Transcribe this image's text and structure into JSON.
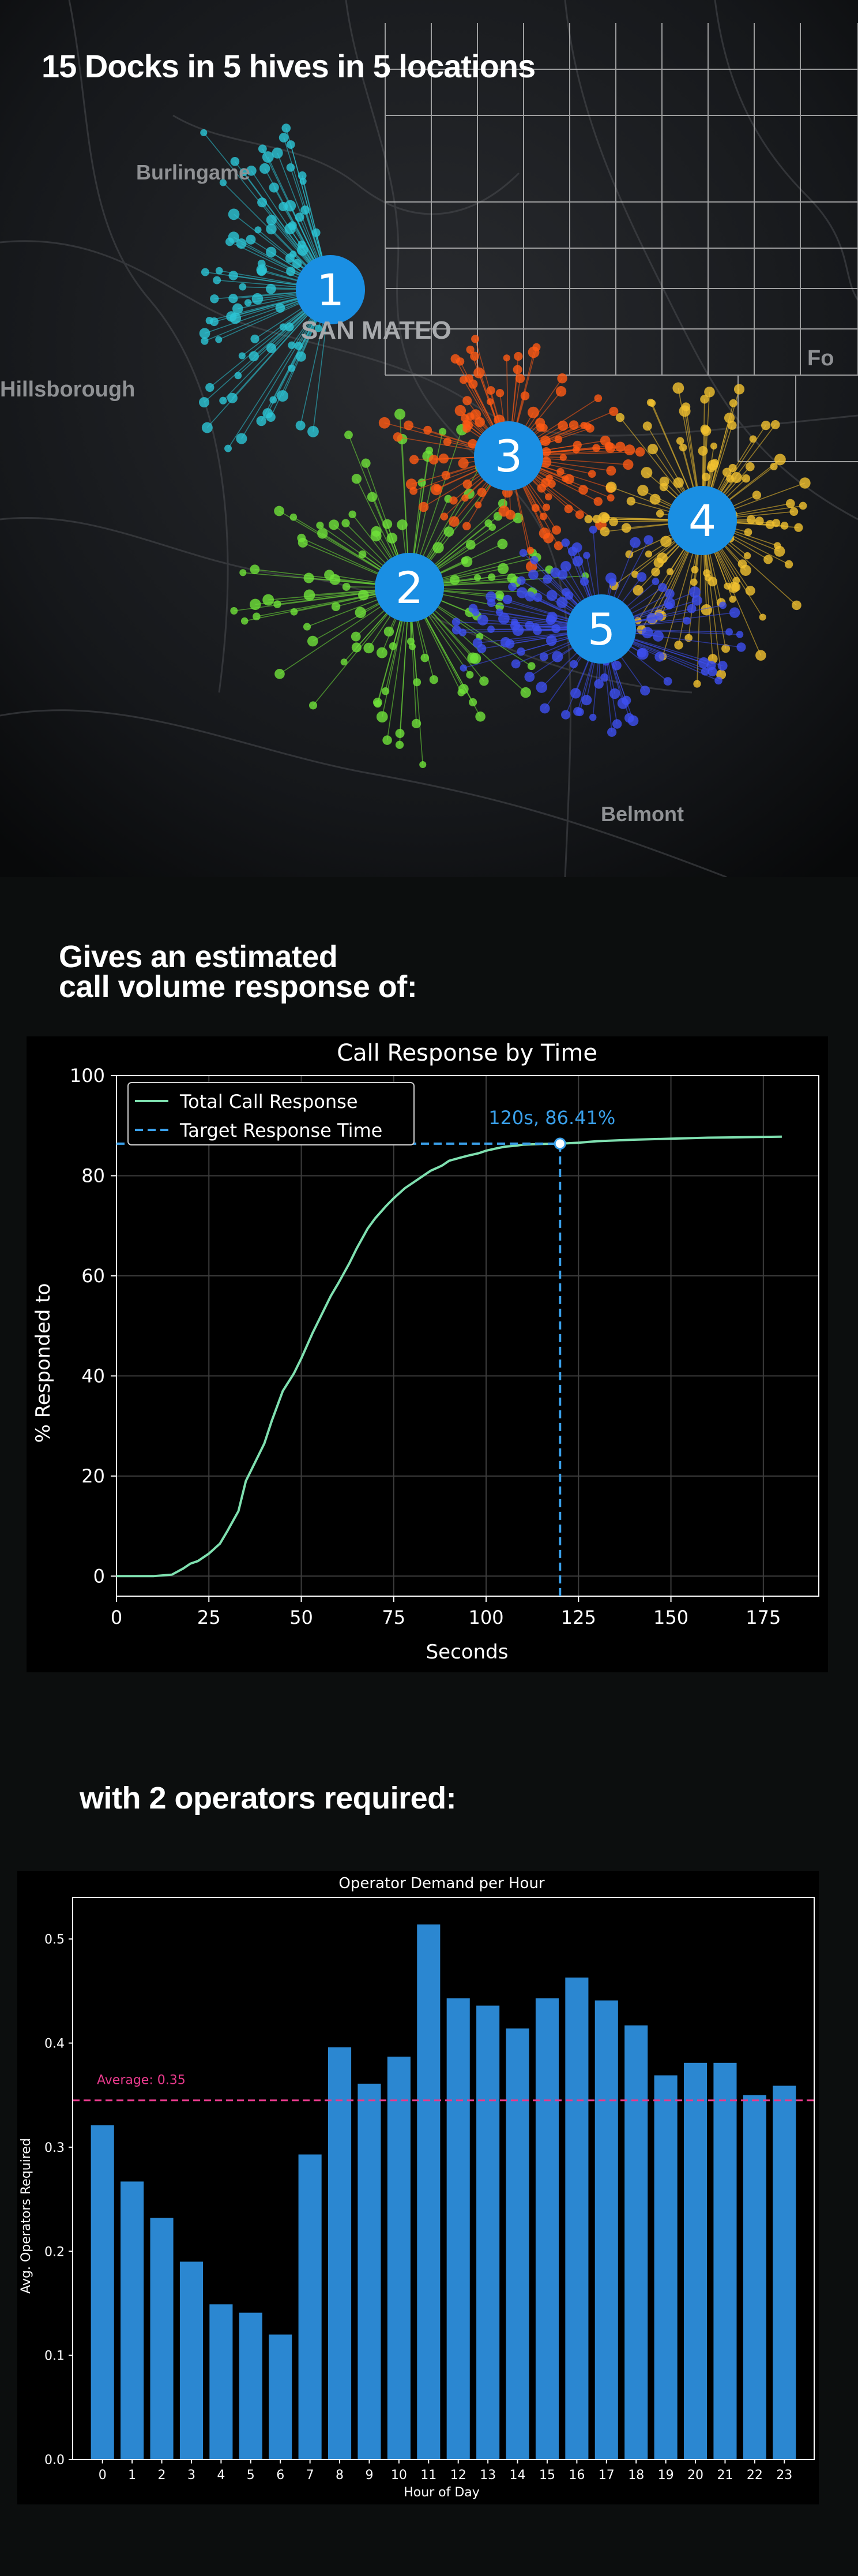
{
  "map": {
    "title": "15 Docks in 5 hives in 5 locations",
    "places": [
      "Burlingame",
      "SAN MATEO",
      "Hillsborough",
      "Belmont",
      "Fo"
    ],
    "hives": [
      {
        "label": "1",
        "color": "#2cc6d6"
      },
      {
        "label": "2",
        "color": "#6fe23a"
      },
      {
        "label": "3",
        "color": "#ff5a14"
      },
      {
        "label": "4",
        "color": "#f2c230"
      },
      {
        "label": "5",
        "color": "#3d4ff0"
      }
    ],
    "marker_color": "#1a8fe3"
  },
  "headings": {
    "response_line1": "Gives an estimated",
    "response_line2": "call volume response of:",
    "operators": "with 2 operators required:"
  },
  "chart_data": [
    {
      "type": "line",
      "title": "Call Response by Time",
      "xlabel": "Seconds",
      "ylabel": "% Responded to",
      "xlim": [
        0,
        190
      ],
      "ylim": [
        -4,
        100
      ],
      "xticks": [
        0,
        25,
        50,
        75,
        100,
        125,
        150,
        175
      ],
      "yticks": [
        0,
        20,
        40,
        60,
        80,
        100
      ],
      "grid": true,
      "legend": "top-left",
      "series": [
        {
          "name": "Total Call Response",
          "color": "#7fe0b0",
          "x": [
            0,
            10,
            15,
            18,
            20,
            22,
            25,
            28,
            30,
            33,
            35,
            38,
            40,
            42,
            45,
            48,
            50,
            53,
            55,
            58,
            60,
            63,
            65,
            68,
            70,
            73,
            75,
            78,
            80,
            83,
            85,
            88,
            90,
            93,
            95,
            98,
            100,
            103,
            105,
            108,
            110,
            113,
            115,
            118,
            120,
            125,
            130,
            140,
            150,
            160,
            170,
            180
          ],
          "y": [
            0,
            0,
            0.3,
            1.5,
            2.5,
            3,
            4.5,
            6.5,
            9,
            13,
            19,
            23.5,
            26.5,
            31,
            37,
            40.5,
            43.5,
            48.5,
            51.5,
            56,
            58.5,
            62.5,
            65.5,
            69.5,
            71.5,
            74,
            75.5,
            77.5,
            78.5,
            80,
            81,
            82,
            83,
            83.6,
            84,
            84.5,
            85,
            85.5,
            85.8,
            86,
            86.2,
            86.3,
            86.35,
            86.4,
            86.41,
            86.6,
            86.9,
            87.2,
            87.4,
            87.6,
            87.7,
            87.8
          ]
        }
      ],
      "target": {
        "name": "Target Response Time",
        "x": 120,
        "y": 86.41,
        "label": "120s, 86.41%",
        "color": "#3aa0ea"
      }
    },
    {
      "type": "bar",
      "title": "Operator Demand per Hour",
      "xlabel": "Hour of Day",
      "ylabel": "Avg. Operators Required",
      "ylim": [
        0,
        0.54
      ],
      "yticks": [
        0.0,
        0.1,
        0.2,
        0.3,
        0.4,
        0.5
      ],
      "categories": [
        "0",
        "1",
        "2",
        "3",
        "4",
        "5",
        "6",
        "7",
        "8",
        "9",
        "10",
        "11",
        "12",
        "13",
        "14",
        "15",
        "16",
        "17",
        "18",
        "19",
        "20",
        "21",
        "22",
        "23"
      ],
      "values": [
        0.321,
        0.267,
        0.232,
        0.19,
        0.149,
        0.141,
        0.12,
        0.293,
        0.396,
        0.361,
        0.387,
        0.514,
        0.443,
        0.436,
        0.414,
        0.443,
        0.463,
        0.441,
        0.417,
        0.369,
        0.381,
        0.381,
        0.35,
        0.359
      ],
      "bar_color": "#2b87d1",
      "average": {
        "value": 0.345,
        "label": "Average: 0.35",
        "color": "#e83a8c"
      }
    }
  ]
}
